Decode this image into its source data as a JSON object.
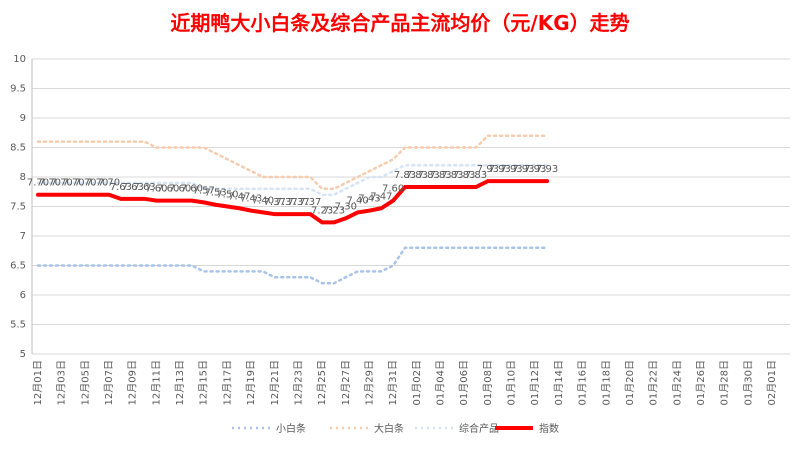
{
  "chart_data": {
    "type": "line",
    "title": "近期鸭大小白条及综合产品主流均价（元/KG）走势",
    "categories": [
      "12月01日",
      null,
      "12月03日",
      null,
      "12月05日",
      null,
      "12月07日",
      null,
      "12月09日",
      null,
      "12月11日",
      null,
      "12月13日",
      null,
      "12月15日",
      null,
      "12月17日",
      null,
      "12月19日",
      null,
      "12月21日",
      null,
      "12月23日",
      null,
      "12月25日",
      null,
      "12月27日",
      null,
      "12月29日",
      null,
      "12月31日",
      null,
      "01月02日",
      null,
      "01月04日",
      null,
      "01月06日",
      null,
      "01月08日",
      null,
      "01月10日",
      null,
      "01月12日",
      null,
      "01月14日",
      null,
      "01月16日",
      null,
      "01月18日",
      null,
      "01月20日",
      null,
      "01月22日",
      null,
      "01月24日",
      null,
      "01月26日",
      null,
      "01月28日",
      null,
      "01月30日",
      null,
      "02月01日"
    ],
    "series": [
      {
        "name": "小白条",
        "color": "#a9c4e8",
        "values": [
          6.5,
          6.5,
          6.5,
          6.5,
          6.5,
          6.5,
          6.5,
          6.5,
          6.5,
          6.5,
          6.5,
          6.5,
          6.5,
          6.5,
          6.4,
          6.4,
          6.4,
          6.4,
          6.4,
          6.4,
          6.3,
          6.3,
          6.3,
          6.3,
          6.2,
          6.2,
          6.3,
          6.4,
          6.4,
          6.4,
          6.5,
          6.8,
          6.8,
          6.8,
          6.8,
          6.8,
          6.8,
          6.8,
          6.8,
          6.8,
          6.8,
          6.8,
          6.8,
          6.8,
          null,
          null,
          null,
          null,
          null,
          null,
          null,
          null,
          null,
          null,
          null,
          null,
          null,
          null,
          null,
          null,
          null,
          null,
          null
        ]
      },
      {
        "name": "大白条",
        "color": "#f8cbad",
        "values": [
          8.6,
          8.6,
          8.6,
          8.6,
          8.6,
          8.6,
          8.6,
          8.6,
          8.6,
          8.6,
          8.5,
          8.5,
          8.5,
          8.5,
          8.5,
          8.4,
          8.3,
          8.2,
          8.1,
          8.0,
          8.0,
          8.0,
          8.0,
          8.0,
          7.8,
          7.8,
          7.9,
          8.0,
          8.1,
          8.2,
          8.3,
          8.5,
          8.5,
          8.5,
          8.5,
          8.5,
          8.5,
          8.5,
          8.7,
          8.7,
          8.7,
          8.7,
          8.7,
          8.7,
          null,
          null,
          null,
          null,
          null,
          null,
          null,
          null,
          null,
          null,
          null,
          null,
          null,
          null,
          null,
          null,
          null,
          null,
          null
        ]
      },
      {
        "name": "综合产品",
        "color": "#d6e4f5",
        "values": [
          7.9,
          7.9,
          7.9,
          7.9,
          7.9,
          7.9,
          7.9,
          7.9,
          7.9,
          7.9,
          7.9,
          7.9,
          7.9,
          7.9,
          7.8,
          7.8,
          7.8,
          7.8,
          7.8,
          7.8,
          7.8,
          7.8,
          7.8,
          7.8,
          7.7,
          7.7,
          7.8,
          7.9,
          8.0,
          8.0,
          8.1,
          8.2,
          8.2,
          8.2,
          8.2,
          8.2,
          8.2,
          8.2,
          8.2,
          8.2,
          8.2,
          8.2,
          8.2,
          8.2,
          null,
          null,
          null,
          null,
          null,
          null,
          null,
          null,
          null,
          null,
          null,
          null,
          null,
          null,
          null,
          null,
          null,
          null,
          null
        ]
      },
      {
        "name": "指数",
        "color": "#ff0000",
        "values": [
          7.7,
          7.7,
          7.7,
          7.7,
          7.7,
          7.7,
          7.7,
          7.63,
          7.63,
          7.63,
          7.6,
          7.6,
          7.6,
          7.6,
          7.57,
          7.53,
          7.5,
          7.47,
          7.43,
          7.4,
          7.37,
          7.37,
          7.37,
          7.37,
          7.23,
          7.23,
          7.3,
          7.4,
          7.43,
          7.47,
          7.6,
          7.83,
          7.83,
          7.83,
          7.83,
          7.83,
          7.83,
          7.83,
          7.93,
          7.93,
          7.93,
          7.93,
          7.93,
          7.93,
          null,
          null,
          null,
          null,
          null,
          null,
          null,
          null,
          null,
          null,
          null,
          null,
          null,
          null,
          null,
          null,
          null,
          null,
          null
        ],
        "value_labels": [
          "7.70",
          "7.70",
          "7.70",
          "7.70",
          "7.70",
          "7.70",
          "7.70",
          "7.63",
          "7.63",
          "7.63",
          "7.60",
          "7.60",
          "7.60",
          "7.60",
          "7.57",
          "7.53",
          "7.50",
          "7.47",
          "7.43",
          "7.40",
          "7.37",
          "7.37",
          "7.37",
          "7.37",
          "7.23",
          "7.23",
          "7.30",
          "7.40",
          "7.43",
          "7.47",
          "7.60",
          "7.83",
          "7.83",
          "7.83",
          "7.83",
          "7.83",
          "7.83",
          "7.83",
          "7.93",
          "7.93",
          "7.93",
          "7.93",
          "7.93",
          "7.93",
          null,
          null,
          null,
          null,
          null,
          null,
          null,
          null,
          null,
          null,
          null,
          null,
          null,
          null,
          null,
          null,
          null,
          null,
          null
        ]
      }
    ],
    "ylim": [
      5,
      10
    ],
    "yticks": [
      5,
      5.5,
      6,
      6.5,
      7,
      7.5,
      8,
      8.5,
      9,
      9.5,
      10
    ],
    "grid": true,
    "legend": "bottom"
  }
}
